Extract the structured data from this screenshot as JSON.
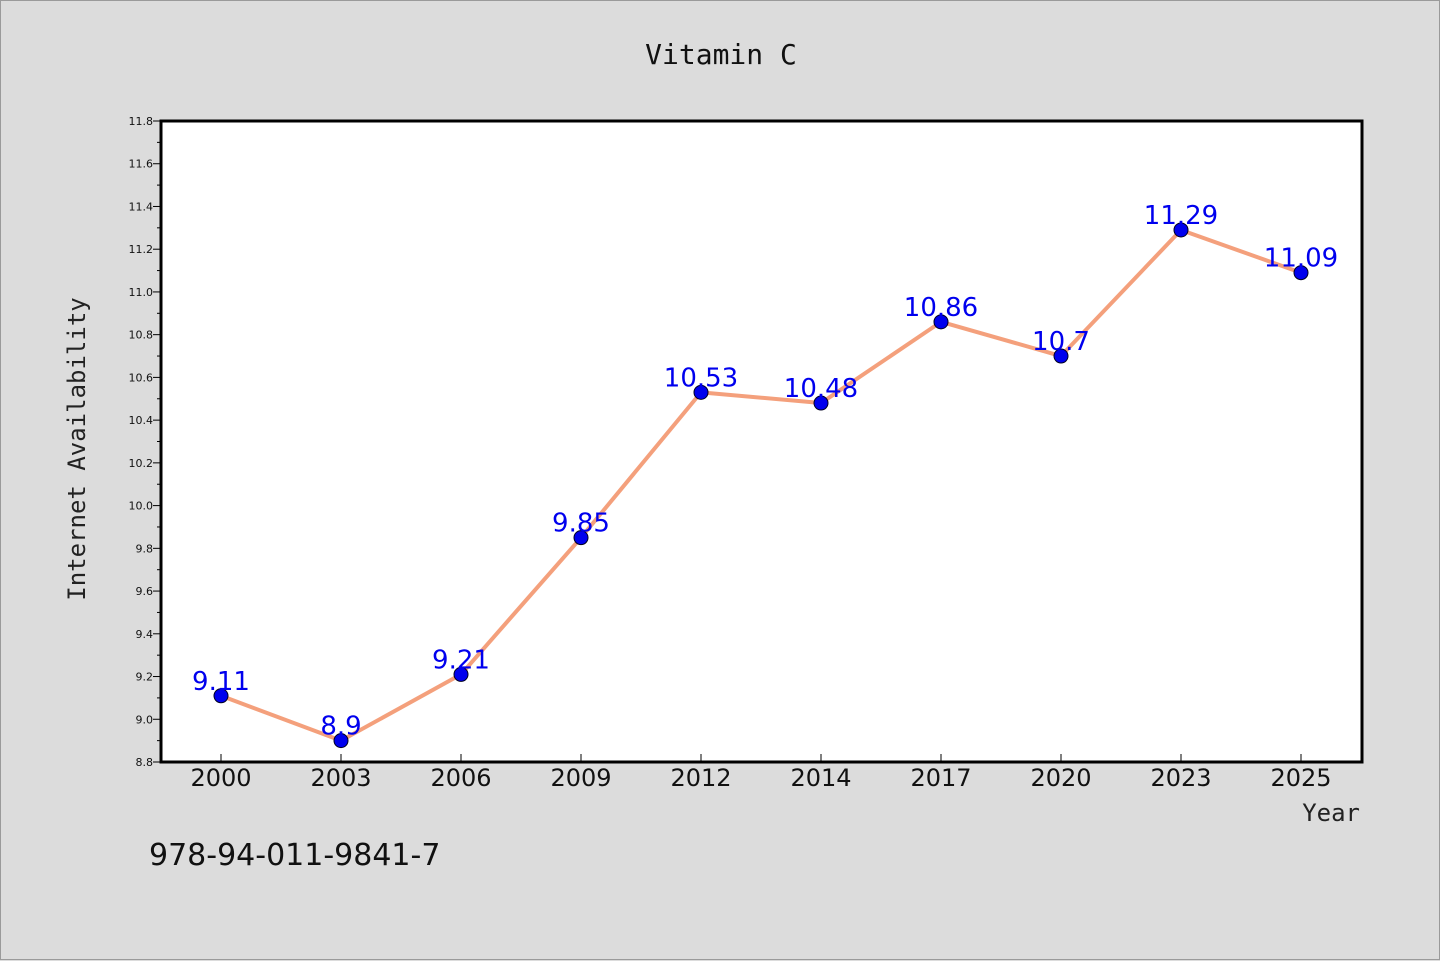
{
  "chart_data": {
    "type": "line",
    "title": "Vitamin C",
    "xlabel": "Year",
    "ylabel": "Internet Availability",
    "categories": [
      "2000",
      "2003",
      "2006",
      "2009",
      "2012",
      "2014",
      "2017",
      "2020",
      "2023",
      "2025"
    ],
    "series": [
      {
        "values": [
          9.11,
          8.9,
          9.21,
          9.85,
          10.53,
          10.48,
          10.86,
          10.7,
          11.29,
          11.09
        ],
        "labels": [
          "9.11",
          "8.9",
          "9.21",
          "9.85",
          "10.53",
          "10.48",
          "10.86",
          "10.7",
          "11.29",
          "11.09"
        ],
        "line_color": "#f4a07c",
        "marker_color": "#0000ee"
      }
    ],
    "ylim": [
      8.8,
      11.8
    ],
    "yticks": [
      "8.8",
      "9.0",
      "9.2",
      "9.4",
      "9.6",
      "9.8",
      "10.0",
      "10.2",
      "10.4",
      "10.6",
      "10.8",
      "11.0",
      "11.2",
      "11.4",
      "11.6",
      "11.8"
    ],
    "grid": false,
    "legend": "none"
  },
  "footer": {
    "id_text": "978-94-011-9841-7"
  }
}
